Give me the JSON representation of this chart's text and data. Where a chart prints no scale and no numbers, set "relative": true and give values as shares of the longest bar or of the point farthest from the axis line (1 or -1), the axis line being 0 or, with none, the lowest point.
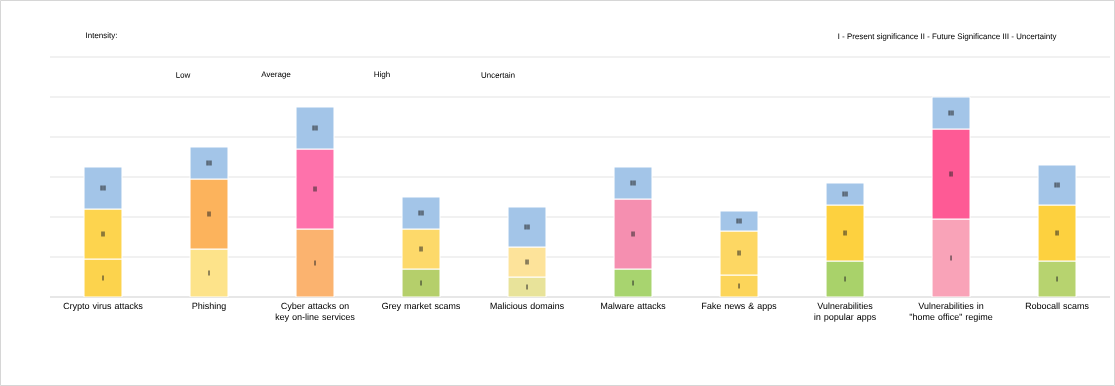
{
  "chart_data": {
    "type": "bar",
    "stacked": true,
    "relative": true,
    "grid": "y",
    "legend_title": "Intensity:",
    "categories": [
      "Crypto virus attacks",
      "Phishing",
      "Cyber attacks on key on-line services",
      "Grey market scams",
      "Malicious domains",
      "Malware attacks",
      "Fake news & apps",
      "Vulnerabilities in popular apps",
      "Vulnerabilities in \"home office\" regime",
      "Robocall scams"
    ],
    "series": [
      {
        "name": "I",
        "values": [
          0.19,
          0.24,
          0.34,
          0.14,
          0.1,
          0.14,
          0.11,
          0.18,
          0.39,
          0.18
        ],
        "colors": [
          "#fcd34d",
          "#fde38a",
          "#fbb36f",
          "#b5cf6b",
          "#e8e39a",
          "#a8d46f",
          "#fcd55a",
          "#a9d26a",
          "#f9a3b8",
          "#b7d36f"
        ]
      },
      {
        "name": "II",
        "values": [
          0.25,
          0.35,
          0.4,
          0.2,
          0.15,
          0.35,
          0.22,
          0.28,
          0.45,
          0.28
        ],
        "colors": [
          "#fdd44e",
          "#fcb35c",
          "#fe72ab",
          "#fdd96a",
          "#fde39a",
          "#f58fb0",
          "#fdd763",
          "#fdd13f",
          "#fe5a95",
          "#fdd13f"
        ]
      },
      {
        "name": "III",
        "values": [
          0.21,
          0.16,
          0.21,
          0.16,
          0.2,
          0.16,
          0.1,
          0.11,
          0.16,
          0.2
        ],
        "colors": [
          "#a3c5e8",
          "#a3c5e8",
          "#a3c5e8",
          "#a3c5e8",
          "#a3c5e8",
          "#a3c5e8",
          "#a3c5e8",
          "#a3c5e8",
          "#a3c5e8",
          "#a3c5e8"
        ]
      }
    ],
    "annotations": [
      "I - Present significance II - Future Significance III - Uncertainty",
      "Low",
      "Average",
      "High",
      "Uncertain"
    ]
  }
}
